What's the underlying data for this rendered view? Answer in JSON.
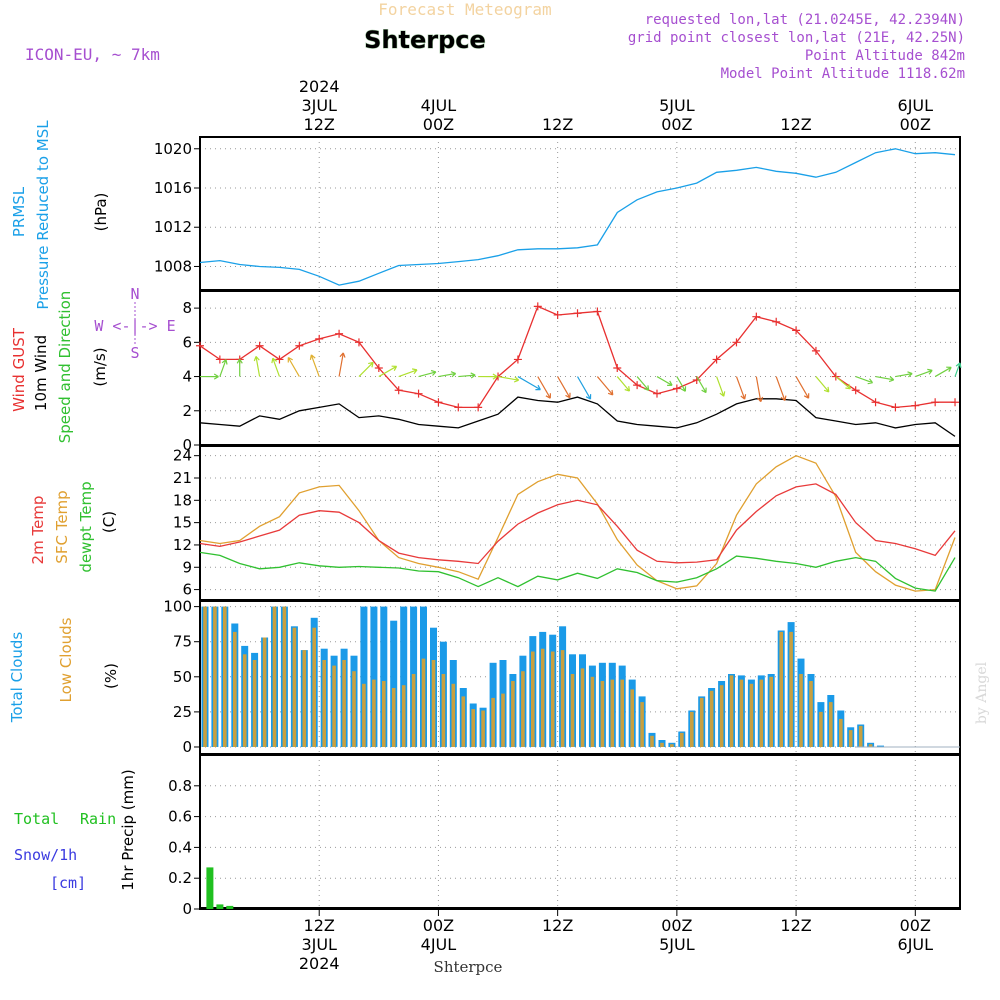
{
  "header": {
    "faded_title": "Forecast Meteogram",
    "location": "Shterpce",
    "model": "ICON-EU, ~ 7km",
    "requested": "requested lon,lat (21.0245E, 42.2394N)",
    "gridpoint": "grid point closest lon,lat (21E, 42.25N)",
    "point_alt": "Point Altitude 842m",
    "model_alt": "Model Point Altitude 1118.62m",
    "watermark": "by Angel",
    "footer": "Shterpce"
  },
  "colors": {
    "pressure": "#1aa0e8",
    "gust": "#e83030",
    "wind": "#000000",
    "temp": "#e83a3a",
    "sfc": "#e0a030",
    "dew": "#30c030",
    "total_cloud": "#1a9ae8",
    "low_cloud": "#c8a040",
    "rain": "#20c020",
    "snow": "#3a3ae0",
    "purple": "#a64fd0"
  },
  "time_labels": {
    "top": [
      {
        "h": 12,
        "lines": [
          "2024",
          "3JUL",
          "12Z"
        ]
      },
      {
        "h": 24,
        "lines": [
          "4JUL",
          "00Z"
        ]
      },
      {
        "h": 36,
        "lines": [
          "12Z"
        ]
      },
      {
        "h": 48,
        "lines": [
          "5JUL",
          "00Z"
        ]
      },
      {
        "h": 60,
        "lines": [
          "12Z"
        ]
      },
      {
        "h": 72,
        "lines": [
          "6JUL",
          "00Z"
        ]
      }
    ],
    "bottom": [
      {
        "h": 12,
        "lines": [
          "12Z",
          "3JUL",
          "2024"
        ]
      },
      {
        "h": 24,
        "lines": [
          "00Z",
          "4JUL"
        ]
      },
      {
        "h": 36,
        "lines": [
          "12Z"
        ]
      },
      {
        "h": 48,
        "lines": [
          "00Z",
          "5JUL"
        ]
      },
      {
        "h": 60,
        "lines": [
          "12Z"
        ]
      },
      {
        "h": 72,
        "lines": [
          "00Z",
          "6JUL"
        ]
      }
    ]
  },
  "panel_labels": {
    "pressure": {
      "l1": "PRMSL",
      "l2": "Pressure Reduced to MSL",
      "unit": "(hPa)"
    },
    "wind": {
      "l1": "Wind GUST",
      "l2": "10m Wind",
      "l3": "Speed and Direction",
      "unit": "(m/s)",
      "compass_ns": "N",
      "compass_s": "S",
      "compass_we": "W <-|-> E"
    },
    "temp": {
      "l1": "2m Temp",
      "l2": "SFC Temp",
      "l3": "dewpt Temp",
      "unit": "(C)"
    },
    "clouds": {
      "l1": "Total Clouds",
      "l2": "Low Clouds",
      "unit": "(%)"
    },
    "precip": {
      "l1": "Total",
      "l1b": "Rain",
      "l2": "Snow/1h",
      "l3": "[cm]",
      "unit": "1hr Precip (mm)"
    }
  },
  "chart_data": [
    {
      "type": "line",
      "title": "PRMSL Pressure Reduced to MSL",
      "ylabel": "hPa",
      "ylim": [
        1005.6,
        1021.2
      ],
      "yticks": [
        1008,
        1012,
        1016,
        1020
      ],
      "x": [
        0,
        2,
        4,
        6,
        8,
        10,
        12,
        14,
        16,
        18,
        20,
        22,
        24,
        26,
        28,
        30,
        32,
        34,
        36,
        38,
        40,
        42,
        44,
        46,
        48,
        50,
        52,
        54,
        56,
        58,
        60,
        62,
        64,
        66,
        68,
        70,
        72,
        74,
        76
      ],
      "series": [
        {
          "name": "PRMSL",
          "values": [
            1008.4,
            1008.6,
            1008.2,
            1008.0,
            1007.9,
            1007.7,
            1007.0,
            1006.1,
            1006.5,
            1007.3,
            1008.1,
            1008.2,
            1008.3,
            1008.5,
            1008.7,
            1009.1,
            1009.7,
            1009.8,
            1009.8,
            1009.9,
            1010.2,
            1013.5,
            1014.8,
            1015.6,
            1016.0,
            1016.5,
            1017.6,
            1017.8,
            1018.1,
            1017.7,
            1017.5,
            1017.1,
            1017.6,
            1018.6,
            1019.6,
            1020.0,
            1019.5,
            1019.6,
            1019.4
          ]
        }
      ]
    },
    {
      "type": "line",
      "title": "Wind GUST / 10m Wind Speed and Direction",
      "ylabel": "m/s",
      "ylim": [
        0,
        9
      ],
      "yticks": [
        0,
        2,
        4,
        6,
        8
      ],
      "x": [
        0,
        2,
        4,
        6,
        8,
        10,
        12,
        14,
        16,
        18,
        20,
        22,
        24,
        26,
        28,
        30,
        32,
        34,
        36,
        38,
        40,
        42,
        44,
        46,
        48,
        50,
        52,
        54,
        56,
        58,
        60,
        62,
        64,
        66,
        68,
        70,
        72,
        74,
        76
      ],
      "series": [
        {
          "name": "Wind GUST",
          "values": [
            5.8,
            5.0,
            5.0,
            5.8,
            5.0,
            5.8,
            6.2,
            6.5,
            6.0,
            4.5,
            3.2,
            3.0,
            2.5,
            2.2,
            2.2,
            4.0,
            5.0,
            8.1,
            7.6,
            7.7,
            7.8,
            4.5,
            3.5,
            3.0,
            3.3,
            3.8,
            5.0,
            6.0,
            7.5,
            7.2,
            6.7,
            5.5,
            4.0,
            3.2,
            2.5,
            2.2,
            2.3,
            2.5,
            2.5
          ]
        },
        {
          "name": "10m Wind",
          "values": [
            1.3,
            1.2,
            1.1,
            1.7,
            1.5,
            2.0,
            2.2,
            2.4,
            1.6,
            1.7,
            1.5,
            1.2,
            1.1,
            1.0,
            1.4,
            1.8,
            2.8,
            2.6,
            2.5,
            2.8,
            2.4,
            1.4,
            1.2,
            1.1,
            1.0,
            1.3,
            1.8,
            2.4,
            2.7,
            2.7,
            2.6,
            1.6,
            1.4,
            1.2,
            1.3,
            1.0,
            1.2,
            1.3,
            0.5
          ]
        }
      ],
      "wind_directions_deg": [
        270,
        200,
        180,
        170,
        160,
        150,
        160,
        190,
        225,
        240,
        250,
        255,
        260,
        265,
        270,
        280,
        300,
        330,
        330,
        330,
        320,
        320,
        320,
        300,
        330,
        330,
        340,
        340,
        350,
        340,
        330,
        320,
        310,
        290,
        280,
        260,
        250,
        240,
        200
      ]
    },
    {
      "type": "line",
      "title": "2m Temp / SFC Temp / dewpt Temp",
      "ylabel": "C",
      "ylim": [
        4.6,
        25.3
      ],
      "yticks": [
        6,
        9,
        12,
        15,
        18,
        21,
        24
      ],
      "x": [
        0,
        2,
        4,
        6,
        8,
        10,
        12,
        14,
        16,
        18,
        20,
        22,
        24,
        26,
        28,
        30,
        32,
        34,
        36,
        38,
        40,
        42,
        44,
        46,
        48,
        50,
        52,
        54,
        56,
        58,
        60,
        62,
        64,
        66,
        68,
        70,
        72,
        74,
        76
      ],
      "series": [
        {
          "name": "2m Temp",
          "values": [
            12.2,
            11.8,
            12.4,
            13.2,
            14.0,
            16.0,
            16.6,
            16.4,
            15.0,
            12.6,
            10.9,
            10.3,
            10.0,
            9.8,
            9.5,
            12.5,
            14.8,
            16.3,
            17.4,
            18.0,
            17.4,
            14.5,
            11.3,
            9.8,
            9.6,
            9.7,
            10.0,
            14.0,
            16.5,
            18.6,
            19.8,
            20.2,
            18.8,
            15.0,
            12.6,
            12.2,
            11.5,
            10.6,
            13.9
          ]
        },
        {
          "name": "SFC Temp",
          "values": [
            12.6,
            12.2,
            12.6,
            14.5,
            15.8,
            19.0,
            19.8,
            20.0,
            16.6,
            12.6,
            10.3,
            9.5,
            9.0,
            8.4,
            7.4,
            13.0,
            18.8,
            20.5,
            21.5,
            21.0,
            17.5,
            12.7,
            9.3,
            7.2,
            6.1,
            6.5,
            9.5,
            16.0,
            20.2,
            22.5,
            24.0,
            23.0,
            18.5,
            11.0,
            8.4,
            6.6,
            5.8,
            6.0,
            13.0
          ]
        },
        {
          "name": "dewpt Temp",
          "values": [
            11.0,
            10.6,
            9.5,
            8.8,
            9.0,
            9.6,
            9.2,
            9.0,
            9.1,
            9.0,
            8.9,
            8.5,
            8.4,
            7.6,
            6.4,
            7.6,
            6.4,
            7.8,
            7.3,
            8.2,
            7.5,
            8.8,
            8.3,
            7.2,
            7.0,
            7.6,
            8.8,
            10.5,
            10.2,
            9.8,
            9.5,
            9.0,
            9.8,
            10.3,
            9.8,
            7.5,
            6.2,
            5.8,
            10.3
          ]
        }
      ]
    },
    {
      "type": "bar",
      "title": "Total Clouds / Low Clouds",
      "ylabel": "%",
      "ylim": [
        -5,
        104
      ],
      "yticks": [
        0,
        25,
        50,
        75,
        100
      ],
      "x": [
        0,
        1,
        2,
        3,
        4,
        5,
        6,
        7,
        8,
        9,
        10,
        11,
        12,
        13,
        14,
        15,
        16,
        17,
        18,
        19,
        20,
        21,
        22,
        23,
        24,
        25,
        26,
        27,
        28,
        29,
        30,
        31,
        32,
        33,
        34,
        35,
        36,
        37,
        38,
        39,
        40,
        41,
        42,
        43,
        44,
        45,
        46,
        47,
        48,
        49,
        50,
        51,
        52,
        53,
        54,
        55,
        56,
        57,
        58,
        59,
        60,
        61,
        62,
        63,
        64,
        65,
        66,
        67,
        68,
        69,
        70,
        71,
        72,
        73,
        74,
        75,
        76
      ],
      "series": [
        {
          "name": "Total Clouds",
          "values": [
            100,
            100,
            100,
            88,
            72,
            67,
            78,
            100,
            100,
            86,
            69,
            92,
            70,
            65,
            70,
            65,
            100,
            100,
            100,
            90,
            100,
            100,
            100,
            85,
            75,
            62,
            42,
            31,
            28,
            60,
            62,
            52,
            65,
            79,
            82,
            80,
            86,
            66,
            66,
            58,
            60,
            60,
            58,
            48,
            36,
            10,
            5,
            3,
            11,
            26,
            36,
            42,
            47,
            52,
            51,
            48,
            51,
            52,
            83,
            89,
            63,
            52,
            32,
            37,
            26,
            14,
            16,
            3,
            1,
            0,
            0,
            0,
            0,
            0,
            0,
            0,
            0
          ]
        },
        {
          "name": "Low Clouds",
          "values": [
            100,
            100,
            100,
            82,
            66,
            62,
            78,
            100,
            100,
            85,
            69,
            85,
            62,
            58,
            62,
            54,
            45,
            48,
            47,
            42,
            44,
            52,
            63,
            62,
            52,
            45,
            36,
            27,
            26,
            35,
            38,
            47,
            54,
            68,
            70,
            68,
            69,
            52,
            56,
            50,
            47,
            48,
            48,
            41,
            32,
            8,
            3,
            2,
            10,
            25,
            35,
            40,
            44,
            51,
            48,
            45,
            48,
            50,
            82,
            82,
            52,
            47,
            25,
            32,
            20,
            12,
            15,
            2,
            0,
            0,
            0,
            0,
            0,
            0,
            0,
            0,
            0
          ]
        }
      ]
    },
    {
      "type": "bar",
      "title": "1hr Precip",
      "ylabel": "1hr Precip (mm)",
      "ylim": [
        0,
        1.0
      ],
      "yticks": [
        0,
        0.2,
        0.4,
        0.6,
        0.8
      ],
      "ytick_labels": [
        "0",
        "0.2",
        "0.4",
        "0.6",
        "0.8"
      ],
      "x": [
        1,
        2,
        3
      ],
      "series": [
        {
          "name": "Total Rain",
          "values": [
            0.27,
            0.03,
            0.02
          ]
        },
        {
          "name": "Snow/1h",
          "values": [
            0,
            0,
            0
          ]
        }
      ]
    }
  ]
}
